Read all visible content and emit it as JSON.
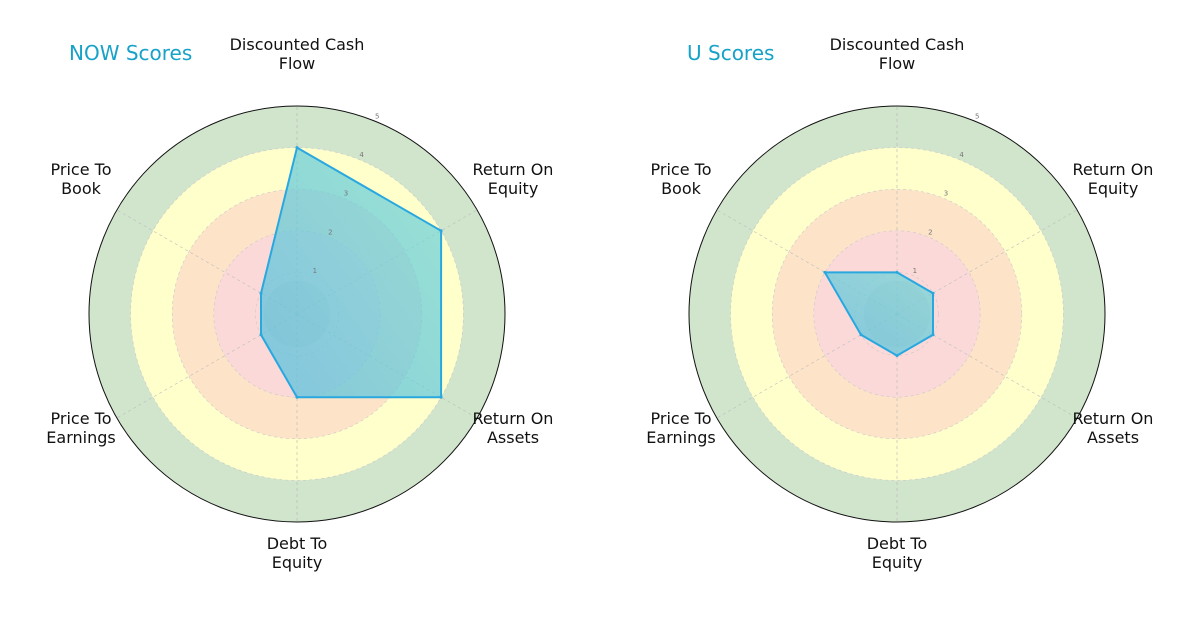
{
  "chart_data": [
    {
      "type": "radar",
      "title": "NOW Scores",
      "axes": [
        "Discounted Cash Flow",
        "Return On Equity",
        "Return On Assets",
        "Debt To Equity",
        "Price To Earnings",
        "Price To Book"
      ],
      "rlim": [
        0,
        5
      ],
      "ticks": [
        "1",
        "2",
        "3",
        "4",
        "5"
      ],
      "values": [
        4,
        4,
        4,
        2,
        1,
        1
      ],
      "bands": [
        {
          "range": [
            0,
            2
          ],
          "color": "#fbd9d9"
        },
        {
          "range": [
            2,
            3
          ],
          "color": "#fde3c8"
        },
        {
          "range": [
            3,
            4
          ],
          "color": "#ffffcc"
        },
        {
          "range": [
            4,
            5
          ],
          "color": "#d0e5cc"
        }
      ],
      "fill_colors": [
        "#5bc0de",
        "#7ad7d7"
      ],
      "line_color": "#29a8e0",
      "title_color": "#17a2c8"
    },
    {
      "type": "radar",
      "title": "U Scores",
      "axes": [
        "Discounted Cash Flow",
        "Return On Equity",
        "Return On Assets",
        "Debt To Equity",
        "Price To Earnings",
        "Price To Book"
      ],
      "rlim": [
        0,
        5
      ],
      "ticks": [
        "1",
        "2",
        "3",
        "4",
        "5"
      ],
      "values": [
        1,
        1,
        1,
        1,
        1,
        2
      ],
      "bands": [
        {
          "range": [
            0,
            2
          ],
          "color": "#fbd9d9"
        },
        {
          "range": [
            2,
            3
          ],
          "color": "#fde3c8"
        },
        {
          "range": [
            3,
            4
          ],
          "color": "#ffffcc"
        },
        {
          "range": [
            4,
            5
          ],
          "color": "#d0e5cc"
        }
      ],
      "fill_colors": [
        "#5bc0de",
        "#7ad7d7"
      ],
      "line_color": "#29a8e0",
      "title_color": "#17a2c8"
    }
  ],
  "labels": {
    "dcf": [
      "Discounted Cash",
      "Flow"
    ],
    "roe": [
      "Return On",
      "Equity"
    ],
    "roa": [
      "Return On",
      "Assets"
    ],
    "de": [
      "Debt To",
      "Equity"
    ],
    "pe": [
      "Price To",
      "Earnings"
    ],
    "pb": [
      "Price To",
      "Book"
    ]
  }
}
